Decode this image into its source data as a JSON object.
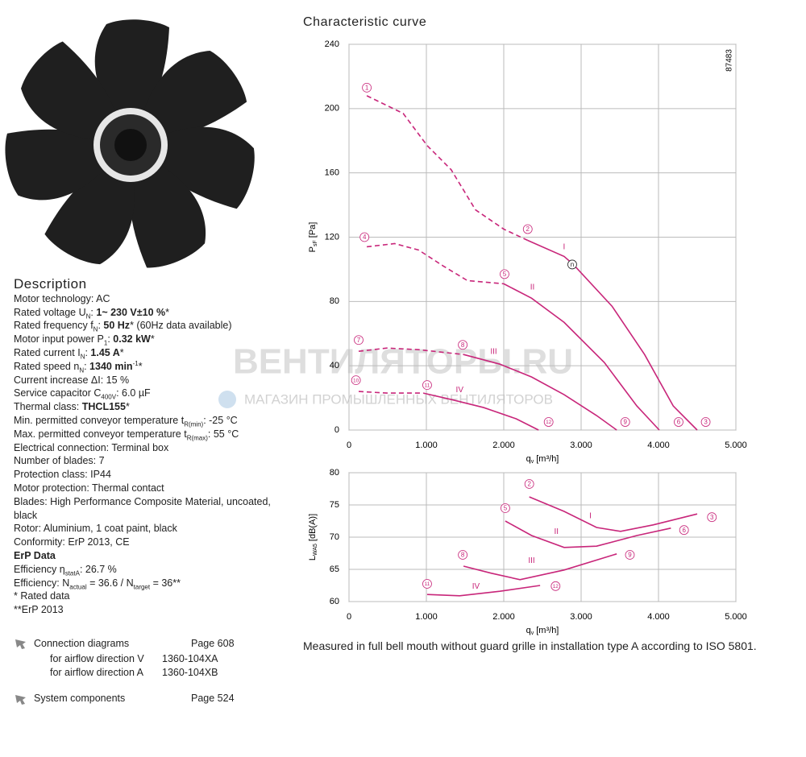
{
  "description": {
    "title": "Description",
    "lines": [
      [
        {
          "t": "Motor technology: AC"
        }
      ],
      [
        {
          "t": "Rated voltage U"
        },
        {
          "sub": "N"
        },
        {
          "t": ": "
        },
        {
          "b": "1~ 230 V±10 %"
        },
        {
          "t": "*"
        }
      ],
      [
        {
          "t": "Rated frequency f"
        },
        {
          "sub": "N"
        },
        {
          "t": ": "
        },
        {
          "b": "50 Hz"
        },
        {
          "t": "* (60Hz data available)"
        }
      ],
      [
        {
          "t": "Motor input power P"
        },
        {
          "sub": "1"
        },
        {
          "t": ": "
        },
        {
          "b": "0.32 kW"
        },
        {
          "t": "*"
        }
      ],
      [
        {
          "t": "Rated current I"
        },
        {
          "sub": "N"
        },
        {
          "t": ": "
        },
        {
          "b": "1.45 A"
        },
        {
          "t": "*"
        }
      ],
      [
        {
          "t": "Rated speed n"
        },
        {
          "sub": "N"
        },
        {
          "t": ": "
        },
        {
          "b": "1340 min"
        },
        {
          "sup": "-1"
        },
        {
          "t": "*"
        }
      ],
      [
        {
          "t": "Current increase ΔI: 15 %"
        }
      ],
      [
        {
          "t": "Service capacitor C"
        },
        {
          "sub": "400V"
        },
        {
          "t": ": 6.0 µF"
        }
      ],
      [
        {
          "t": "Thermal class: "
        },
        {
          "b": "THCL155"
        },
        {
          "t": "*"
        }
      ],
      [
        {
          "t": "Min. permitted conveyor temperature t"
        },
        {
          "sub": "R(min)"
        },
        {
          "t": ": -25 °C"
        }
      ],
      [
        {
          "t": "Max. permitted conveyor temperature t"
        },
        {
          "sub": "R(max)"
        },
        {
          "t": ": 55 °C"
        }
      ],
      [
        {
          "t": "Electrical connection: Terminal box"
        }
      ],
      [
        {
          "t": "Number of blades: 7"
        }
      ],
      [
        {
          "t": "Protection class: IP44"
        }
      ],
      [
        {
          "t": "Motor protection: Thermal contact"
        }
      ],
      [
        {
          "t": "Blades: High Performance Composite Material, uncoated, black"
        }
      ],
      [
        {
          "t": "Rotor: Aluminium, 1 coat paint, black"
        }
      ],
      [
        {
          "t": "Conformity: ErP 2013, CE"
        }
      ],
      [
        {
          "b": "ErP Data"
        }
      ],
      [
        {
          "t": "Efficiency η"
        },
        {
          "sub": "statA"
        },
        {
          "t": ": 26.7 %"
        }
      ],
      [
        {
          "t": "Efficiency: N"
        },
        {
          "sub": "actual"
        },
        {
          "t": " = 36.6 / N"
        },
        {
          "sub": "target"
        },
        {
          "t": " = 36**"
        }
      ],
      [
        {
          "t": "* Rated data"
        }
      ],
      [
        {
          "t": "**ErP 2013"
        }
      ]
    ]
  },
  "links": {
    "connection": {
      "label": "Connection diagrams",
      "page": "Page 608",
      "rows": [
        [
          "for airflow direction V",
          "1360-104XA"
        ],
        [
          "for airflow direction A",
          "1360-104XB"
        ]
      ]
    },
    "system": {
      "label": "System components",
      "page": "Page 524"
    }
  },
  "watermark": {
    "title": "ВЕНТИЛЯТОРЫ.RU",
    "subtitle": "МАГАЗИН ПРОМЫШЛЕННЫХ ВЕНТИЛЯТОРОВ"
  },
  "caption": "Measured in full bell mouth without guard grille in installation type A according to ISO 5801.",
  "chart_data": [
    {
      "type": "line",
      "title": "Characteristic curve",
      "code": "87483",
      "xlabel": {
        "main": "q",
        "sub": "v",
        "unit": "[m³/h]"
      },
      "ylabel": {
        "main": "P",
        "sub": "sF",
        "unit": "[Pa]"
      },
      "xlim": [
        0,
        5000
      ],
      "ylim": [
        0,
        240
      ],
      "xticks": [
        0,
        {
          "value": 1000,
          "label": "1.000"
        },
        {
          "value": 2000,
          "label": "2.000"
        },
        {
          "value": 3000,
          "label": "3.000"
        },
        {
          "value": 4000,
          "label": "4.000"
        },
        {
          "value": 5000,
          "label": "5.000"
        }
      ],
      "yticks": [
        0,
        40,
        80,
        120,
        160,
        200,
        240
      ],
      "grid": true,
      "series": [
        {
          "color": "#c8267a",
          "dash": true,
          "x": [
            230,
            700,
            1010,
            1320,
            1635,
            2000,
            2310
          ],
          "values": [
            208,
            197,
            177,
            162,
            137,
            125,
            118
          ]
        },
        {
          "color": "#c8267a",
          "dash": false,
          "x": [
            2310,
            2780,
            2900,
            3400,
            3820,
            4190,
            4500
          ],
          "values": [
            118,
            108,
            103,
            77,
            47,
            15,
            0
          ]
        },
        {
          "color": "#c8267a",
          "dash": true,
          "x": [
            230,
            590,
            900,
            1220,
            1530,
            2000
          ],
          "values": [
            114,
            116,
            112,
            102,
            93,
            91
          ]
        },
        {
          "color": "#c8267a",
          "dash": false,
          "x": [
            2000,
            2360,
            2780,
            3300,
            3720,
            4010
          ],
          "values": [
            91,
            82,
            67,
            42,
            15,
            0
          ]
        },
        {
          "color": "#c8267a",
          "dash": true,
          "x": [
            125,
            490,
            900,
            1480
          ],
          "values": [
            49,
            51,
            50,
            47
          ]
        },
        {
          "color": "#c8267a",
          "dash": false,
          "x": [
            1480,
            1950,
            2360,
            2780,
            3200,
            3460
          ],
          "values": [
            47,
            41,
            33,
            22,
            9,
            0
          ]
        },
        {
          "color": "#c8267a",
          "dash": true,
          "x": [
            125,
            490,
            960
          ],
          "values": [
            24,
            23,
            23
          ]
        },
        {
          "color": "#c8267a",
          "dash": false,
          "x": [
            960,
            1320,
            1740,
            2160,
            2450
          ],
          "values": [
            23,
            19,
            14,
            7,
            0
          ]
        }
      ],
      "annotations": [
        {
          "text": "1",
          "x": 230,
          "y": 213,
          "circled": true
        },
        {
          "text": "2",
          "x": 2310,
          "y": 125,
          "circled": true
        },
        {
          "text": "3",
          "x": 4610,
          "y": 5,
          "circled": true
        },
        {
          "text": "4",
          "x": 200,
          "y": 120,
          "circled": true
        },
        {
          "text": "5",
          "x": 2010,
          "y": 97,
          "circled": true
        },
        {
          "text": "6",
          "x": 4260,
          "y": 5,
          "circled": true
        },
        {
          "text": "7",
          "x": 125,
          "y": 56,
          "circled": true
        },
        {
          "text": "8",
          "x": 1470,
          "y": 53,
          "circled": true
        },
        {
          "text": "9",
          "x": 3570,
          "y": 5,
          "circled": true
        },
        {
          "text": "10",
          "x": 90,
          "y": 31,
          "circled": true
        },
        {
          "text": "11",
          "x": 1010,
          "y": 28,
          "circled": true
        },
        {
          "text": "12",
          "x": 2580,
          "y": 5,
          "circled": true
        },
        {
          "text": "n",
          "x": 2885,
          "y": 103,
          "circled": true,
          "color": "#222"
        },
        {
          "text": "I",
          "x": 2780,
          "y": 114,
          "circled": false
        },
        {
          "text": "II",
          "x": 2370,
          "y": 89,
          "circled": false
        },
        {
          "text": "III",
          "x": 1870,
          "y": 49,
          "circled": false
        },
        {
          "text": "IV",
          "x": 1430,
          "y": 25,
          "circled": false
        }
      ]
    },
    {
      "type": "line",
      "xlabel": {
        "main": "q",
        "sub": "v",
        "unit": "[m³/h]"
      },
      "ylabel": {
        "main": "L",
        "sub": "WA5",
        "unit": "[dB(A)]"
      },
      "xlim": [
        0,
        5000
      ],
      "ylim": [
        60,
        80
      ],
      "xticks": [
        0,
        {
          "value": 1000,
          "label": "1.000"
        },
        {
          "value": 2000,
          "label": "2.000"
        },
        {
          "value": 3000,
          "label": "3.000"
        },
        {
          "value": 4000,
          "label": "4.000"
        },
        {
          "value": 5000,
          "label": "5.000"
        }
      ],
      "yticks": [
        60,
        65,
        70,
        75,
        80
      ],
      "grid": true,
      "series": [
        {
          "color": "#c8267a",
          "dash": false,
          "x": [
            2330,
            2780,
            3200,
            3510,
            3930,
            4500
          ],
          "values": [
            76.25,
            74,
            71.5,
            70.9,
            71.9,
            73.6
          ]
        },
        {
          "color": "#c8267a",
          "dash": false,
          "x": [
            2020,
            2360,
            2780,
            3200,
            3720,
            4160
          ],
          "values": [
            72.5,
            70.25,
            68.4,
            68.6,
            70.25,
            71.4
          ]
        },
        {
          "color": "#c8267a",
          "dash": false,
          "x": [
            1480,
            1840,
            2210,
            2780,
            3460
          ],
          "values": [
            65.5,
            64.4,
            63.4,
            64.9,
            67.4
          ]
        },
        {
          "color": "#c8267a",
          "dash": false,
          "x": [
            1010,
            1430,
            1950,
            2470
          ],
          "values": [
            61.1,
            60.9,
            61.6,
            62.5
          ]
        }
      ],
      "annotations": [
        {
          "text": "2",
          "x": 2330,
          "y": 78.25,
          "circled": true
        },
        {
          "text": "3",
          "x": 4690,
          "y": 73.1,
          "circled": true
        },
        {
          "text": "5",
          "x": 2020,
          "y": 74.5,
          "circled": true
        },
        {
          "text": "6",
          "x": 4330,
          "y": 71.1,
          "circled": true
        },
        {
          "text": "8",
          "x": 1470,
          "y": 67.25,
          "circled": true
        },
        {
          "text": "9",
          "x": 3630,
          "y": 67.25,
          "circled": true
        },
        {
          "text": "11",
          "x": 1010,
          "y": 62.75,
          "circled": true
        },
        {
          "text": "12",
          "x": 2670,
          "y": 62.4,
          "circled": true
        },
        {
          "text": "I",
          "x": 3120,
          "y": 73.3,
          "circled": false
        },
        {
          "text": "II",
          "x": 2680,
          "y": 70.9,
          "circled": false
        },
        {
          "text": "III",
          "x": 2360,
          "y": 66.4,
          "circled": false
        },
        {
          "text": "IV",
          "x": 1640,
          "y": 62.4,
          "circled": false
        }
      ]
    }
  ]
}
